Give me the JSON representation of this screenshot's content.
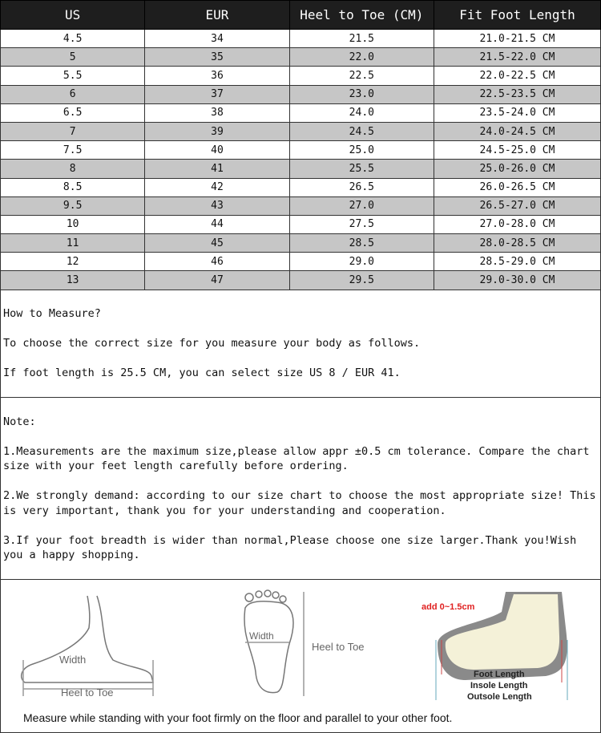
{
  "table": {
    "headers": [
      "US",
      "EUR",
      "Heel to Toe (CM)",
      "Fit Foot Length"
    ],
    "rows": [
      [
        "4.5",
        "34",
        "21.5",
        "21.0-21.5 CM"
      ],
      [
        "5",
        "35",
        "22.0",
        "21.5-22.0 CM"
      ],
      [
        "5.5",
        "36",
        "22.5",
        "22.0-22.5 CM"
      ],
      [
        "6",
        "37",
        "23.0",
        "22.5-23.5 CM"
      ],
      [
        "6.5",
        "38",
        "24.0",
        "23.5-24.0 CM"
      ],
      [
        "7",
        "39",
        "24.5",
        "24.0-24.5 CM"
      ],
      [
        "7.5",
        "40",
        "25.0",
        "24.5-25.0 CM"
      ],
      [
        "8",
        "41",
        "25.5",
        "25.0-26.0 CM"
      ],
      [
        "8.5",
        "42",
        "26.5",
        "26.0-26.5 CM"
      ],
      [
        "9.5",
        "43",
        "27.0",
        "26.5-27.0 CM"
      ],
      [
        "10",
        "44",
        "27.5",
        "27.0-28.0 CM"
      ],
      [
        "11",
        "45",
        "28.5",
        "28.0-28.5 CM"
      ],
      [
        "12",
        "46",
        "29.0",
        "28.5-29.0 CM"
      ],
      [
        "13",
        "47",
        "29.5",
        "29.0-30.0 CM"
      ]
    ]
  },
  "measure": {
    "lines": [
      "How to Measure?",
      "To choose the correct size for you measure your body as follows.",
      "If foot length is 25.5 CM, you can select size US 8 / EUR 41."
    ]
  },
  "note": {
    "lines": [
      "Note:",
      "1.Measurements are the maximum size,please allow appr ±0.5 cm tolerance. Compare the chart size with your feet length carefully before ordering.",
      "2.We strongly demand: according to our size chart to choose the most appropriate size! This is very important, thank you for your understanding and cooperation.",
      "3.If your foot breadth is wider than normal,Please choose one size larger.Thank you!Wish you a happy shopping."
    ]
  },
  "diagram": {
    "side_width": "Width",
    "side_heel": "Heel to Toe",
    "sole_width": "Width",
    "sole_heel": "Heel to Toe",
    "add": "add 0~1.5cm",
    "foot_length": "Foot Length",
    "insole_length": "Insole Length",
    "outsole_length": "Outsole Length",
    "caption": "Measure while standing with your foot firmly on the floor and parallel to your other foot."
  }
}
